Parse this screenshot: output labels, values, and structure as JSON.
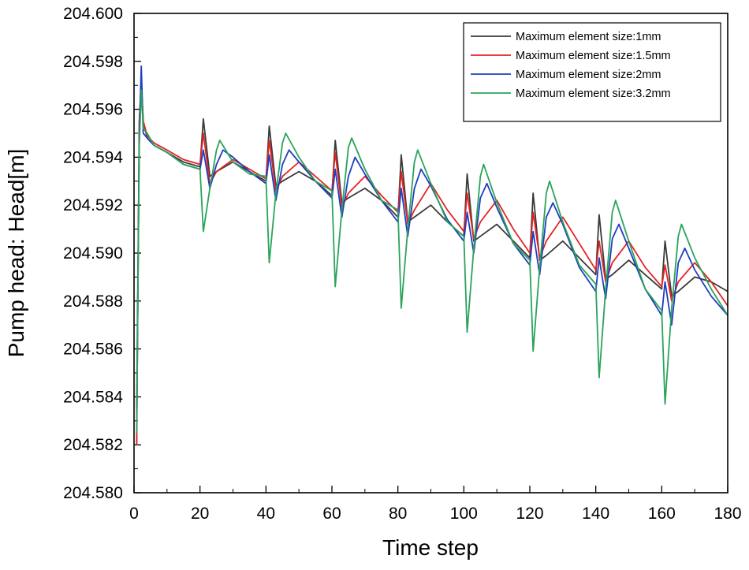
{
  "chart_data": {
    "type": "line",
    "title": "",
    "xlabel": "Time step",
    "ylabel": "Pump head: Head[m]",
    "xlim": [
      0,
      180
    ],
    "ylim": [
      204.58,
      204.6
    ],
    "xticks": [
      0,
      20,
      40,
      60,
      80,
      100,
      120,
      140,
      160,
      180
    ],
    "xtick_labels": [
      "0",
      "20",
      "40",
      "60",
      "80",
      "100",
      "120",
      "140",
      "160",
      "180"
    ],
    "yticks": [
      204.58,
      204.582,
      204.584,
      204.586,
      204.588,
      204.59,
      204.592,
      204.594,
      204.596,
      204.598,
      204.6
    ],
    "ytick_labels": [
      "204.580",
      "204.582",
      "204.584",
      "204.586",
      "204.588",
      "204.590",
      "204.592",
      "204.594",
      "204.596",
      "204.598",
      "204.600"
    ],
    "legend_position": "top-right",
    "series": [
      {
        "name": "Maximum element size:1mm",
        "color": "#3a3a3a",
        "x": [
          0.8,
          1.6,
          2.2,
          2.8,
          4,
          6,
          10,
          15,
          20,
          21,
          23,
          25,
          30,
          35,
          40,
          41,
          43,
          45,
          50,
          55,
          60,
          61,
          63,
          65,
          70,
          75,
          80,
          81,
          83,
          85,
          90,
          95,
          100,
          101,
          103,
          105,
          110,
          115,
          120,
          121,
          123,
          125,
          130,
          135,
          140,
          141,
          143,
          145,
          150,
          155,
          160,
          161,
          163,
          165,
          170,
          175,
          180
        ],
        "y": [
          204.582,
          204.5955,
          204.597,
          204.5955,
          204.5948,
          204.5945,
          204.5942,
          204.5938,
          204.5936,
          204.5956,
          204.5932,
          204.5934,
          204.5938,
          204.5934,
          204.593,
          204.5953,
          204.5928,
          204.593,
          204.5934,
          204.593,
          204.5924,
          204.5947,
          204.5921,
          204.5923,
          204.5927,
          204.5922,
          204.5915,
          204.5941,
          204.5913,
          204.5915,
          204.592,
          204.5913,
          204.5907,
          204.5933,
          204.5905,
          204.5907,
          204.5912,
          204.5905,
          204.5898,
          204.5925,
          204.5897,
          204.5899,
          204.5905,
          204.5898,
          204.5891,
          204.5916,
          204.5889,
          204.5891,
          204.5897,
          204.5891,
          204.5885,
          204.5905,
          204.5882,
          204.5884,
          204.589,
          204.5888,
          204.5884
        ]
      },
      {
        "name": "Maximum element size:1.5mm",
        "color": "#e32323",
        "x": [
          0.8,
          1.6,
          2.2,
          2.8,
          4,
          6,
          10,
          15,
          20,
          21,
          23,
          25,
          30,
          35,
          40,
          41,
          43,
          45,
          50,
          55,
          60,
          61,
          63,
          65,
          70,
          75,
          80,
          81,
          83,
          85,
          90,
          95,
          100,
          101,
          103,
          105,
          110,
          115,
          120,
          121,
          123,
          125,
          130,
          135,
          140,
          141,
          143,
          145,
          150,
          155,
          160,
          161,
          163,
          165,
          170,
          175,
          180
        ],
        "y": [
          204.582,
          204.5955,
          204.5972,
          204.5955,
          204.5949,
          204.5946,
          204.5943,
          204.5939,
          204.5937,
          204.595,
          204.5929,
          204.5934,
          204.5939,
          204.5935,
          204.5931,
          204.5947,
          204.5926,
          204.5932,
          204.5938,
          204.5932,
          204.5926,
          204.5942,
          204.5919,
          204.5925,
          204.5932,
          204.5924,
          204.5917,
          204.5934,
          204.5912,
          204.5918,
          204.5929,
          204.5918,
          204.5909,
          204.5925,
          204.5906,
          204.5913,
          204.5922,
          204.591,
          204.59,
          204.5917,
          204.5898,
          204.5905,
          204.5915,
          204.5904,
          204.5893,
          204.5905,
          204.5888,
          204.5896,
          204.5905,
          204.5894,
          204.5886,
          204.5895,
          204.588,
          204.5888,
          204.5896,
          204.5888,
          204.5878
        ]
      },
      {
        "name": "Maximum element size:2mm",
        "color": "#1e3fbf",
        "x": [
          0.8,
          1.6,
          2.2,
          2.8,
          4,
          6,
          10,
          15,
          20,
          21,
          23,
          25,
          27,
          30,
          35,
          40,
          41,
          43,
          45,
          47,
          50,
          55,
          60,
          61,
          63,
          65,
          67,
          70,
          75,
          80,
          81,
          83,
          85,
          87,
          90,
          95,
          100,
          101,
          103,
          105,
          107,
          110,
          115,
          120,
          121,
          123,
          125,
          127,
          130,
          135,
          140,
          141,
          143,
          145,
          147,
          150,
          155,
          160,
          161,
          163,
          165,
          167,
          170,
          175,
          180
        ],
        "y": [
          204.5835,
          204.595,
          204.5978,
          204.595,
          204.5948,
          204.5945,
          204.5942,
          204.5937,
          204.5935,
          204.5943,
          204.5927,
          204.5937,
          204.5943,
          204.594,
          204.5934,
          204.5929,
          204.5941,
          204.5922,
          204.5937,
          204.5943,
          204.5938,
          204.593,
          204.5923,
          204.5935,
          204.5915,
          204.5932,
          204.594,
          204.5933,
          204.5922,
          204.5913,
          204.5927,
          204.5907,
          204.5927,
          204.5935,
          204.5928,
          204.5914,
          204.5905,
          204.5917,
          204.59,
          204.5923,
          204.5929,
          204.5919,
          204.5904,
          204.5895,
          204.5909,
          204.5891,
          204.5915,
          204.5921,
          204.5912,
          204.5894,
          204.5884,
          204.5898,
          204.5881,
          204.5906,
          204.5912,
          204.5902,
          204.5885,
          204.5874,
          204.5888,
          204.587,
          204.5896,
          204.5902,
          204.5893,
          204.5882,
          204.5874
        ]
      },
      {
        "name": "Maximum element size:3.2mm",
        "color": "#2aa35a",
        "x": [
          0.8,
          1.6,
          2.2,
          2.8,
          4,
          6,
          10,
          15,
          20,
          21,
          23,
          25,
          26,
          30,
          35,
          40,
          41,
          43,
          45,
          46,
          50,
          55,
          60,
          61,
          63,
          65,
          66,
          70,
          75,
          80,
          81,
          83,
          85,
          86,
          90,
          95,
          100,
          101,
          103,
          105,
          106,
          110,
          115,
          120,
          121,
          123,
          125,
          126,
          130,
          135,
          140,
          141,
          143,
          145,
          146,
          150,
          155,
          160,
          161,
          163,
          165,
          166,
          170,
          175,
          180
        ],
        "y": [
          204.5825,
          204.5945,
          204.5968,
          204.5952,
          204.595,
          204.5945,
          204.5942,
          204.5937,
          204.5935,
          204.5909,
          204.5927,
          204.5943,
          204.5947,
          204.5938,
          204.5933,
          204.5932,
          204.5896,
          204.5925,
          204.5946,
          204.595,
          204.594,
          204.593,
          204.5926,
          204.5886,
          204.5918,
          204.5944,
          204.5948,
          204.5935,
          204.5922,
          204.5918,
          204.5877,
          204.591,
          204.5938,
          204.5943,
          204.5929,
          204.5913,
          204.5907,
          204.5867,
          204.5902,
          204.5932,
          204.5937,
          204.5921,
          204.5904,
          204.5897,
          204.5859,
          204.5894,
          204.5925,
          204.593,
          204.5913,
          204.5895,
          204.5887,
          204.5848,
          204.5885,
          204.5917,
          204.5922,
          204.5905,
          204.5885,
          204.5876,
          204.5837,
          204.5877,
          204.5907,
          204.5912,
          204.5898,
          204.5885,
          204.5874
        ]
      }
    ]
  }
}
